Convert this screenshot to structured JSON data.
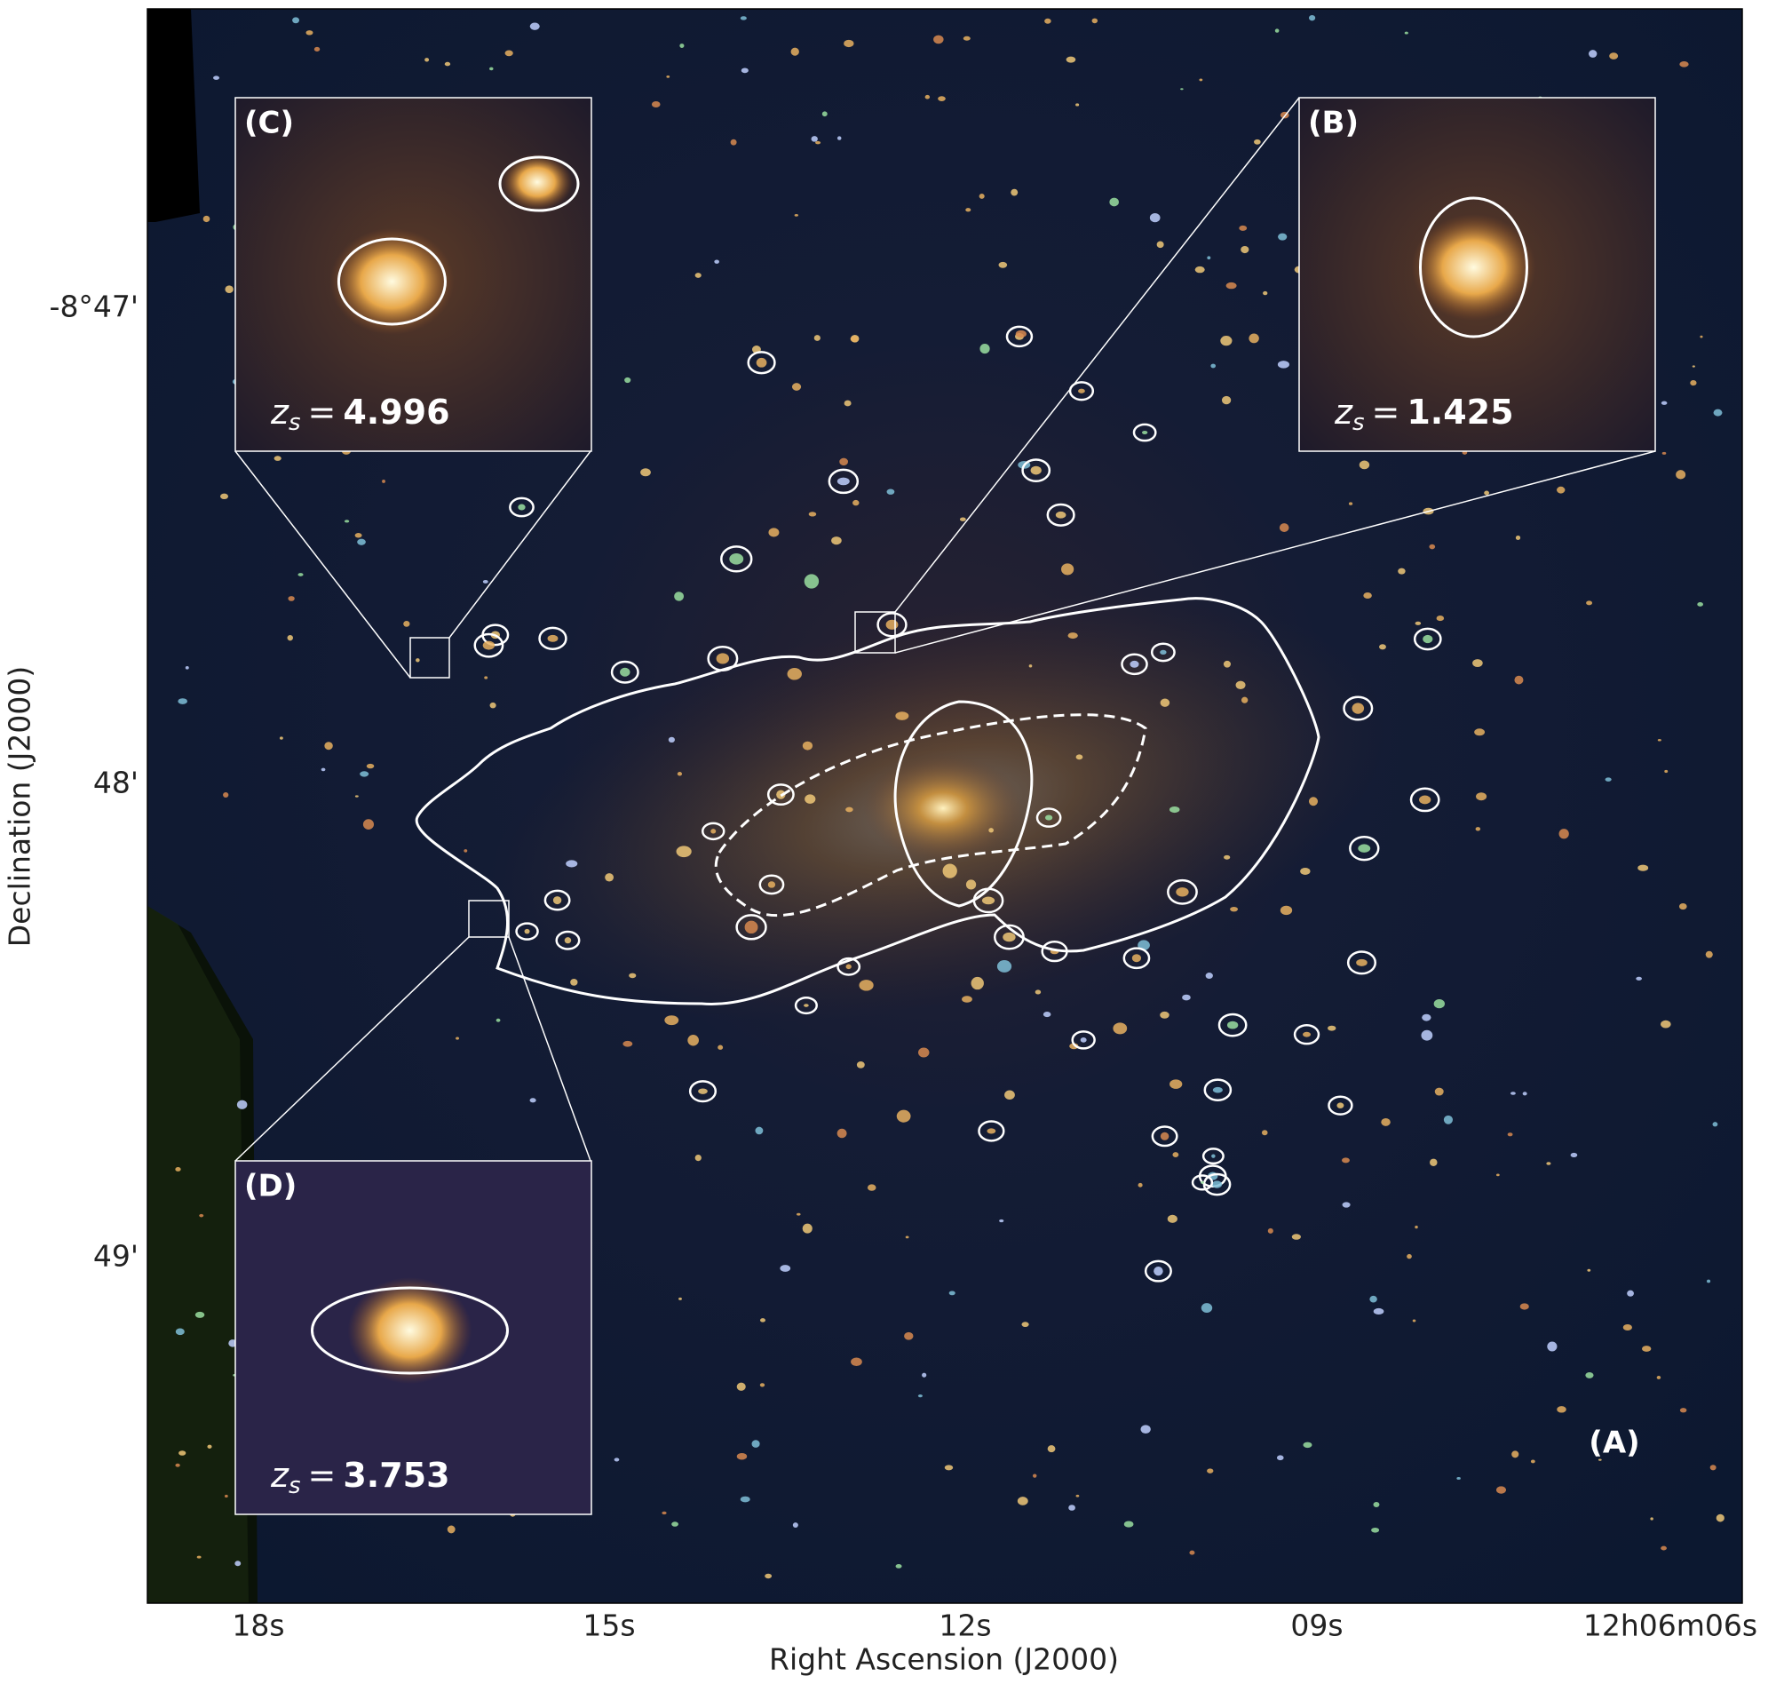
{
  "figure": {
    "x_axis": {
      "title": "Right Ascension (J2000)",
      "ticks": [
        "18s",
        "15s",
        "12s",
        "09s",
        "12h06m06s"
      ]
    },
    "y_axis": {
      "title": "Declination (J2000)",
      "ticks": [
        "-8°47'",
        "48'",
        "49'"
      ]
    },
    "main_panel_label": "(A)",
    "redshift_symbol": {
      "main": "z",
      "sub": "s",
      "relation": "="
    },
    "insets": [
      {
        "label": "(C)",
        "redshift": "4.996"
      },
      {
        "label": "(B)",
        "redshift": "1.425"
      },
      {
        "label": "(D)",
        "redshift": "3.753"
      }
    ]
  }
}
